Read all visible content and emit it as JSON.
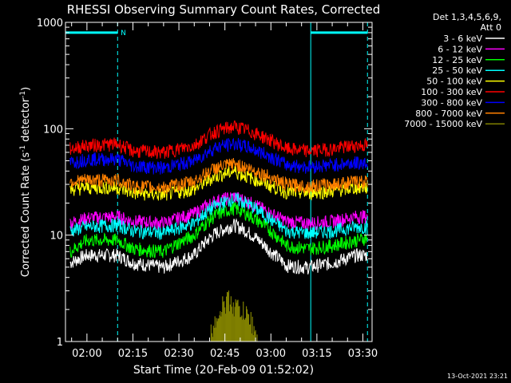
{
  "chart_data": {
    "type": "line",
    "title": "RHESSI Observing Summary Count Rates, Corrected",
    "xlabel": "Start Time (20-Feb-09 01:52:02)",
    "ylabel_main": "Corrected Count Rate (s",
    "ylabel_sup1": "-1",
    "ylabel_mid": " detector",
    "ylabel_sup2": "-1",
    "ylabel_end": ")",
    "yscale": "log",
    "ylim": [
      1,
      1000
    ],
    "y_ticks": [
      {
        "value": 1,
        "label": "1"
      },
      {
        "value": 10,
        "label": "10"
      },
      {
        "value": 100,
        "label": "100"
      },
      {
        "value": 1000,
        "label": "1000"
      }
    ],
    "x_range_minutes": [
      -7,
      93
    ],
    "x_ticks": [
      {
        "minute": 0,
        "label": "02:00"
      },
      {
        "minute": 15,
        "label": "02:15"
      },
      {
        "minute": 30,
        "label": "02:30"
      },
      {
        "minute": 45,
        "label": "02:45"
      },
      {
        "minute": 60,
        "label": "03:00"
      },
      {
        "minute": 75,
        "label": "03:15"
      },
      {
        "minute": 90,
        "label": "03:30"
      }
    ],
    "legend_header": [
      "Det 1,3,4,5,6,9,",
      "Att 0"
    ],
    "legend_position": "right",
    "series": [
      {
        "name": "3 - 6 keV",
        "color": "#ffffff",
        "x": [
          -5.5,
          0,
          10,
          15,
          25,
          35,
          42,
          48,
          52,
          60,
          65,
          72,
          80,
          88,
          91.5
        ],
        "y": [
          5.5,
          6.5,
          6.5,
          5.5,
          5.0,
          6.5,
          10.5,
          12.5,
          11.0,
          7.0,
          5.2,
          5.0,
          5.5,
          6.5,
          6.5
        ]
      },
      {
        "name": "6 - 12 keV",
        "color": "#ff00ff",
        "x": [
          -5.5,
          0,
          10,
          15,
          25,
          35,
          42,
          48,
          52,
          60,
          65,
          72,
          80,
          88,
          91.5
        ],
        "y": [
          13.0,
          14.5,
          15.0,
          13.5,
          13.0,
          16.0,
          21.0,
          23.0,
          21.0,
          16.0,
          13.5,
          13.0,
          13.5,
          15.0,
          15.0
        ]
      },
      {
        "name": "12 - 25 keV",
        "color": "#00ff00",
        "x": [
          -5.5,
          0,
          10,
          15,
          25,
          35,
          42,
          48,
          52,
          60,
          65,
          72,
          80,
          88,
          91.5
        ],
        "y": [
          7.0,
          9.0,
          9.0,
          7.5,
          7.0,
          10.0,
          15.5,
          18.0,
          16.0,
          11.0,
          8.0,
          7.5,
          8.0,
          9.0,
          9.5
        ]
      },
      {
        "name": "25 - 50 keV",
        "color": "#00ffff",
        "x": [
          -5.5,
          0,
          10,
          15,
          25,
          35,
          42,
          48,
          52,
          60,
          65,
          72,
          80,
          88,
          91.5
        ],
        "y": [
          11.0,
          12.0,
          12.5,
          11.0,
          10.5,
          13.0,
          19.0,
          22.0,
          20.0,
          14.0,
          11.0,
          10.5,
          11.0,
          12.0,
          12.0
        ]
      },
      {
        "name": "50 - 100 keV",
        "color": "#ffff00",
        "x": [
          -5.5,
          0,
          10,
          15,
          25,
          35,
          42,
          48,
          52,
          60,
          65,
          72,
          80,
          88,
          91.5
        ],
        "y": [
          27.0,
          28.0,
          28.0,
          25.0,
          24.0,
          27.0,
          36.0,
          40.0,
          36.0,
          29.0,
          25.5,
          25.0,
          26.0,
          28.0,
          28.0
        ]
      },
      {
        "name": "100 - 300 keV",
        "color": "#ff0000",
        "x": [
          -5.5,
          0,
          10,
          15,
          25,
          35,
          42,
          48,
          52,
          60,
          65,
          72,
          80,
          88,
          91.5
        ],
        "y": [
          65.0,
          70.0,
          72.0,
          62.0,
          60.0,
          70.0,
          95.0,
          105.0,
          98.0,
          78.0,
          65.0,
          62.0,
          65.0,
          70.0,
          70.0
        ]
      },
      {
        "name": "300 - 800 keV",
        "color": "#0000ff",
        "x": [
          -5.5,
          0,
          10,
          15,
          25,
          35,
          42,
          48,
          52,
          60,
          65,
          72,
          80,
          88,
          91.5
        ],
        "y": [
          48.0,
          52.0,
          52.0,
          45.0,
          43.0,
          50.0,
          67.0,
          73.0,
          68.0,
          55.0,
          46.0,
          44.0,
          46.0,
          48.0,
          48.0
        ]
      },
      {
        "name": "800 - 7000 keV",
        "color": "#ff8000",
        "x": [
          -5.5,
          0,
          10,
          15,
          25,
          35,
          42,
          48,
          52,
          60,
          65,
          72,
          80,
          88,
          91.5
        ],
        "y": [
          32.0,
          33.0,
          33.0,
          29.0,
          28.0,
          32.0,
          43.0,
          47.0,
          43.0,
          35.0,
          30.0,
          29.0,
          30.0,
          32.0,
          32.0
        ]
      },
      {
        "name": "7000 - 15000 keV",
        "color": "#808000",
        "x": [
          40,
          42,
          44,
          46,
          48,
          50,
          52,
          54,
          55.5
        ],
        "y": [
          1.0,
          1.7,
          2.1,
          2.5,
          2.2,
          2.0,
          1.8,
          1.5,
          1.0
        ]
      }
    ],
    "annotations": [
      {
        "type": "bar",
        "label": "",
        "x_start": -7,
        "x_end": 10,
        "y": 800
      },
      {
        "type": "bar",
        "label": "",
        "x_start": 73,
        "x_end": 91.5,
        "y": 800
      },
      {
        "type": "marker",
        "label": "N",
        "x": 11,
        "y": 800
      },
      {
        "type": "vline",
        "style": "dashed",
        "x": 10
      },
      {
        "type": "vline",
        "style": "dashed",
        "x": 91.5
      },
      {
        "type": "vline",
        "style": "solid",
        "x": 73
      }
    ]
  },
  "footer": {
    "timestamp": "13-Oct-2021 23:21"
  }
}
